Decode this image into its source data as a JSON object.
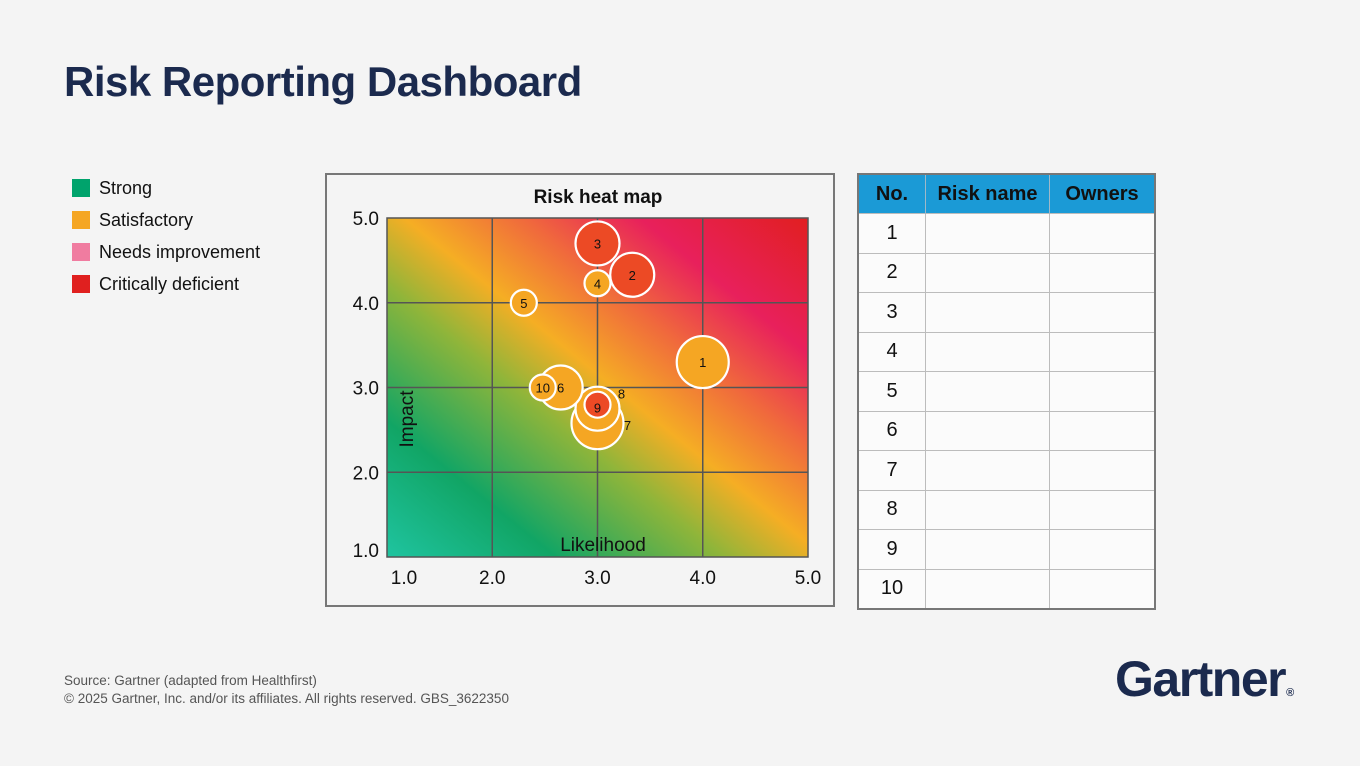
{
  "title": "Risk Reporting Dashboard",
  "legend": [
    {
      "label": "Strong",
      "color": "#00a36c"
    },
    {
      "label": "Satisfactory",
      "color": "#f5a623"
    },
    {
      "label": "Needs improvement",
      "color": "#f07ca0"
    },
    {
      "label": "Critically deficient",
      "color": "#e0201f"
    }
  ],
  "chart_data": {
    "type": "scatter",
    "title": "Risk heat map",
    "xlabel": "Likelihood",
    "ylabel": "Impact",
    "xlim": [
      1.0,
      5.0
    ],
    "ylim": [
      1.0,
      5.0
    ],
    "x_ticks": [
      "1.0",
      "2.0",
      "3.0",
      "4.0",
      "5.0"
    ],
    "y_ticks": [
      "1.0",
      "2.0",
      "3.0",
      "4.0",
      "5.0"
    ],
    "grid": true,
    "points": [
      {
        "label": "1",
        "x": 4.0,
        "y": 3.3,
        "size": "large",
        "status": "satisfactory"
      },
      {
        "label": "2",
        "x": 3.33,
        "y": 4.33,
        "size": "medium",
        "status": "critical"
      },
      {
        "label": "3",
        "x": 3.0,
        "y": 4.7,
        "size": "medium",
        "status": "critical"
      },
      {
        "label": "4",
        "x": 3.0,
        "y": 4.23,
        "size": "small",
        "status": "satisfactory"
      },
      {
        "label": "5",
        "x": 2.3,
        "y": 4.0,
        "size": "small",
        "status": "satisfactory"
      },
      {
        "label": "6",
        "x": 2.65,
        "y": 3.0,
        "size": "medium",
        "status": "satisfactory"
      },
      {
        "label": "7",
        "x": 3.0,
        "y": 2.65,
        "size": "large",
        "status": "satisfactory"
      },
      {
        "label": "8",
        "x": 3.0,
        "y": 2.75,
        "size": "medium",
        "status": "satisfactory"
      },
      {
        "label": "9",
        "x": 3.0,
        "y": 2.75,
        "size": "small",
        "status": "critical"
      },
      {
        "label": "10",
        "x": 2.48,
        "y": 3.0,
        "size": "small",
        "status": "satisfactory"
      }
    ]
  },
  "table": {
    "headers": [
      "No.",
      "Risk name",
      "Owners"
    ],
    "rows": [
      {
        "no": "1",
        "name": "",
        "owner": ""
      },
      {
        "no": "2",
        "name": "",
        "owner": ""
      },
      {
        "no": "3",
        "name": "",
        "owner": ""
      },
      {
        "no": "4",
        "name": "",
        "owner": ""
      },
      {
        "no": "5",
        "name": "",
        "owner": ""
      },
      {
        "no": "6",
        "name": "",
        "owner": ""
      },
      {
        "no": "7",
        "name": "",
        "owner": ""
      },
      {
        "no": "8",
        "name": "",
        "owner": ""
      },
      {
        "no": "9",
        "name": "",
        "owner": ""
      },
      {
        "no": "10",
        "name": "",
        "owner": ""
      }
    ]
  },
  "footer": {
    "source": "Source: Gartner (adapted from Healthfirst)",
    "copyright": "© 2025 Gartner, Inc. and/or its affiliates. All rights reserved. GBS_3622350"
  },
  "logo": {
    "text": "Gartner",
    "mark": "®"
  },
  "colors": {
    "title": "#1b2a4e",
    "table_header": "#1b9ad6",
    "bubble_orange": "#f5a623",
    "bubble_red": "#ec4a25"
  }
}
